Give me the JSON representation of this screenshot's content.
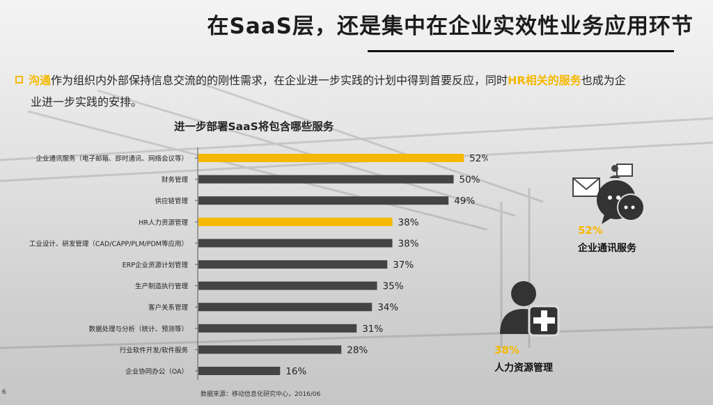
{
  "title": "在SaaS层，还是集中在企业实效性业务应用环节",
  "intro": {
    "hl1": "沟通",
    "t1": "作为组织内外部保持信息交流的的刚性需求，在企业进一步实践的计划中得到首要反应，同时",
    "hl2": "HR相关的服务",
    "t2": "也成为企",
    "t3": "业进一步实践的安排。"
  },
  "chart_data": {
    "type": "bar",
    "orientation": "horizontal",
    "title": "进一步部署SaaS将包含哪些服务",
    "categories": [
      "企业通讯服务（电子邮箱、即时通讯、网络会议等）",
      "财务管理",
      "供应链管理",
      "HR人力资源管理",
      "工业设计、研发管理（CAD/CAPP/PLM/PDM等应用）",
      "ERP企业资源计划管理",
      "生产制造执行管理",
      "客户关系管理",
      "数据处理与分析（统计、预测等）",
      "行业软件开发/软件服务",
      "企业协同办公（OA）"
    ],
    "values": [
      52,
      50,
      49,
      38,
      38,
      37,
      35,
      34,
      31,
      28,
      16
    ],
    "value_labels": [
      "52%",
      "50%",
      "49%",
      "38%",
      "38%",
      "37%",
      "35%",
      "34%",
      "31%",
      "28%",
      "16%"
    ],
    "highlighted": [
      0,
      3
    ],
    "colors": {
      "highlight": "#f5b800",
      "default": "#444444"
    },
    "grid": false
  },
  "stats": [
    {
      "pct": "52%",
      "label": "企业通讯服务",
      "icon": "chat-bubbles-icon"
    },
    {
      "pct": "38%",
      "label": "人力资源管理",
      "icon": "add-person-icon"
    }
  ],
  "footnote": "数据来源：移动信息化研究中心，2016/06",
  "page_number": "6"
}
